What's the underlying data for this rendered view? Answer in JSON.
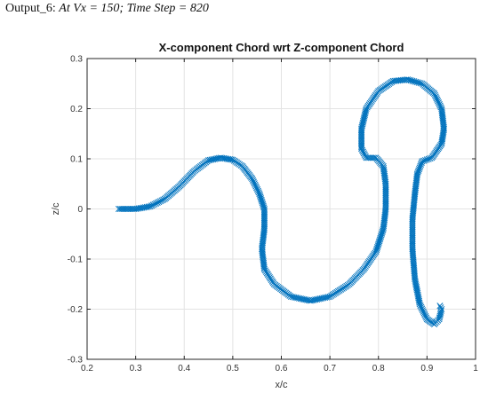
{
  "caption": {
    "prefix": "Output_6: ",
    "italic": "At Vx = 150; Time Step = 820"
  },
  "chart_data": {
    "type": "scatter",
    "title": "X-component Chord wrt Z-component Chord",
    "xlabel": "x/c",
    "ylabel": "z/c",
    "xlim": [
      0.2,
      1
    ],
    "ylim": [
      -0.3,
      0.3
    ],
    "xticks": [
      0.2,
      0.3,
      0.4,
      0.5,
      0.6,
      0.7,
      0.8,
      0.9,
      1
    ],
    "xtick_labels": [
      "0.2",
      "0.3",
      "0.4",
      "0.5",
      "0.6",
      "0.7",
      "0.8",
      "0.9",
      "1"
    ],
    "yticks": [
      -0.3,
      -0.2,
      -0.1,
      0,
      0.1,
      0.2,
      0.3
    ],
    "ytick_labels": [
      "-0.3",
      "-0.2",
      "-0.1",
      "0",
      "0.1",
      "0.2",
      "0.3"
    ],
    "grid": true,
    "marker": "x",
    "color": "#0072BD",
    "series": [
      {
        "points": [
          [
            0.265,
            0.0
          ],
          [
            0.3,
            0.0
          ],
          [
            0.33,
            0.005
          ],
          [
            0.36,
            0.02
          ],
          [
            0.39,
            0.045
          ],
          [
            0.42,
            0.075
          ],
          [
            0.45,
            0.097
          ],
          [
            0.475,
            0.102
          ],
          [
            0.5,
            0.098
          ],
          [
            0.52,
            0.085
          ],
          [
            0.54,
            0.06
          ],
          [
            0.555,
            0.03
          ],
          [
            0.565,
            0.0
          ],
          [
            0.565,
            -0.04
          ],
          [
            0.56,
            -0.08
          ],
          [
            0.565,
            -0.12
          ],
          [
            0.585,
            -0.15
          ],
          [
            0.62,
            -0.175
          ],
          [
            0.66,
            -0.183
          ],
          [
            0.7,
            -0.175
          ],
          [
            0.74,
            -0.15
          ],
          [
            0.77,
            -0.12
          ],
          [
            0.795,
            -0.085
          ],
          [
            0.81,
            -0.04
          ],
          [
            0.815,
            0.0
          ],
          [
            0.815,
            0.05
          ],
          [
            0.81,
            0.085
          ],
          [
            0.795,
            0.102
          ],
          [
            0.775,
            0.102
          ],
          [
            0.765,
            0.12
          ],
          [
            0.765,
            0.16
          ],
          [
            0.775,
            0.2
          ],
          [
            0.8,
            0.235
          ],
          [
            0.83,
            0.255
          ],
          [
            0.86,
            0.258
          ],
          [
            0.89,
            0.25
          ],
          [
            0.915,
            0.23
          ],
          [
            0.93,
            0.2
          ],
          [
            0.935,
            0.16
          ],
          [
            0.93,
            0.13
          ],
          [
            0.91,
            0.102
          ],
          [
            0.89,
            0.095
          ],
          [
            0.88,
            0.07
          ],
          [
            0.875,
            0.03
          ],
          [
            0.87,
            -0.02
          ],
          [
            0.87,
            -0.08
          ],
          [
            0.875,
            -0.14
          ],
          [
            0.885,
            -0.19
          ],
          [
            0.9,
            -0.22
          ],
          [
            0.915,
            -0.23
          ],
          [
            0.925,
            -0.22
          ],
          [
            0.93,
            -0.2
          ],
          [
            0.925,
            -0.19
          ]
        ]
      }
    ]
  }
}
